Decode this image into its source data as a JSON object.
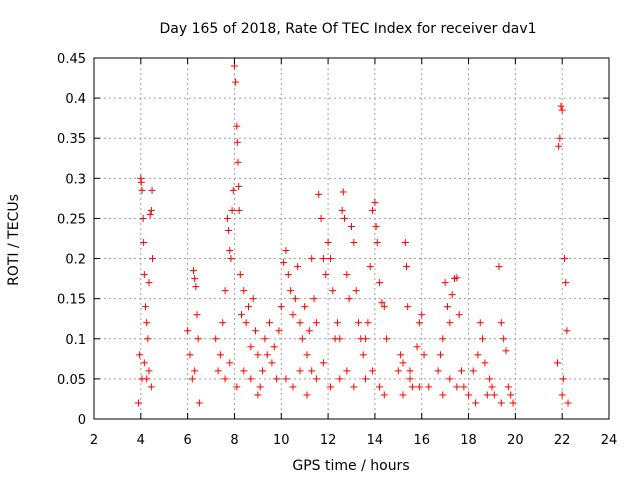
{
  "chart_data": {
    "type": "scatter",
    "title": "Day 165 of 2018, Rate Of TEC Index for receiver dav1",
    "xlabel": "GPS time / hours",
    "ylabel": "ROTI / TECUs",
    "xlim": [
      2,
      24
    ],
    "ylim": [
      0,
      0.45
    ],
    "xticks": [
      2,
      4,
      6,
      8,
      10,
      12,
      14,
      16,
      18,
      20,
      22,
      24
    ],
    "xtick_labels": [
      "2",
      "4",
      "6",
      "8",
      "10",
      "12",
      "14",
      "16",
      "18",
      "20",
      "22",
      "24"
    ],
    "yticks": [
      0,
      0.05,
      0.1,
      0.15,
      0.2,
      0.25,
      0.3,
      0.35,
      0.4,
      0.45
    ],
    "ytick_labels": [
      "0",
      "0.05",
      "0.1",
      "0.15",
      "0.2",
      "0.25",
      "0.3",
      "0.35",
      "0.4",
      "0.45"
    ],
    "grid": true,
    "marker": "+",
    "color": "#ff0000",
    "series": [
      {
        "name": "ROTI",
        "points": [
          [
            3.9,
            0.02
          ],
          [
            3.95,
            0.08
          ],
          [
            4.0,
            0.3
          ],
          [
            4.02,
            0.295
          ],
          [
            4.05,
            0.285
          ],
          [
            4.1,
            0.25
          ],
          [
            4.12,
            0.22
          ],
          [
            4.15,
            0.18
          ],
          [
            4.2,
            0.14
          ],
          [
            4.25,
            0.12
          ],
          [
            4.3,
            0.1
          ],
          [
            4.35,
            0.17
          ],
          [
            4.4,
            0.255
          ],
          [
            4.45,
            0.26
          ],
          [
            4.48,
            0.285
          ],
          [
            4.5,
            0.2
          ],
          [
            4.05,
            0.05
          ],
          [
            4.15,
            0.07
          ],
          [
            4.25,
            0.05
          ],
          [
            4.35,
            0.06
          ],
          [
            4.45,
            0.04
          ],
          [
            6.0,
            0.11
          ],
          [
            6.1,
            0.08
          ],
          [
            6.2,
            0.05
          ],
          [
            6.25,
            0.185
          ],
          [
            6.3,
            0.175
          ],
          [
            6.35,
            0.165
          ],
          [
            6.4,
            0.13
          ],
          [
            6.45,
            0.1
          ],
          [
            6.5,
            0.02
          ],
          [
            6.3,
            0.06
          ],
          [
            7.2,
            0.1
          ],
          [
            7.3,
            0.06
          ],
          [
            7.4,
            0.08
          ],
          [
            7.5,
            0.12
          ],
          [
            7.6,
            0.16
          ],
          [
            7.7,
            0.25
          ],
          [
            7.75,
            0.235
          ],
          [
            7.8,
            0.21
          ],
          [
            7.85,
            0.2
          ],
          [
            7.9,
            0.26
          ],
          [
            7.95,
            0.285
          ],
          [
            8.0,
            0.44
          ],
          [
            8.05,
            0.42
          ],
          [
            8.1,
            0.365
          ],
          [
            8.12,
            0.345
          ],
          [
            8.15,
            0.32
          ],
          [
            8.18,
            0.29
          ],
          [
            8.2,
            0.26
          ],
          [
            8.25,
            0.18
          ],
          [
            8.3,
            0.13
          ],
          [
            8.4,
            0.16
          ],
          [
            8.5,
            0.12
          ],
          [
            8.6,
            0.14
          ],
          [
            8.7,
            0.09
          ],
          [
            8.8,
            0.15
          ],
          [
            8.9,
            0.11
          ],
          [
            9.0,
            0.08
          ],
          [
            7.6,
            0.05
          ],
          [
            7.8,
            0.07
          ],
          [
            8.1,
            0.04
          ],
          [
            8.4,
            0.06
          ],
          [
            8.7,
            0.05
          ],
          [
            9.0,
            0.03
          ],
          [
            9.1,
            0.04
          ],
          [
            9.2,
            0.06
          ],
          [
            9.3,
            0.1
          ],
          [
            9.4,
            0.08
          ],
          [
            9.5,
            0.12
          ],
          [
            9.6,
            0.07
          ],
          [
            9.7,
            0.09
          ],
          [
            9.8,
            0.05
          ],
          [
            9.9,
            0.11
          ],
          [
            10.0,
            0.14
          ],
          [
            10.1,
            0.195
          ],
          [
            10.2,
            0.21
          ],
          [
            10.3,
            0.18
          ],
          [
            10.4,
            0.16
          ],
          [
            10.5,
            0.13
          ],
          [
            10.6,
            0.15
          ],
          [
            10.7,
            0.19
          ],
          [
            10.8,
            0.12
          ],
          [
            10.9,
            0.1
          ],
          [
            11.0,
            0.14
          ],
          [
            11.1,
            0.08
          ],
          [
            11.2,
            0.11
          ],
          [
            11.3,
            0.06
          ],
          [
            10.2,
            0.05
          ],
          [
            10.5,
            0.04
          ],
          [
            10.8,
            0.06
          ],
          [
            11.1,
            0.03
          ],
          [
            11.3,
            0.2
          ],
          [
            11.4,
            0.15
          ],
          [
            11.5,
            0.12
          ],
          [
            11.6,
            0.28
          ],
          [
            11.7,
            0.25
          ],
          [
            11.8,
            0.2
          ],
          [
            11.9,
            0.18
          ],
          [
            12.0,
            0.22
          ],
          [
            12.1,
            0.2
          ],
          [
            12.2,
            0.16
          ],
          [
            12.3,
            0.1
          ],
          [
            11.5,
            0.05
          ],
          [
            11.8,
            0.07
          ],
          [
            12.1,
            0.04
          ],
          [
            12.4,
            0.12
          ],
          [
            12.5,
            0.1
          ],
          [
            12.6,
            0.26
          ],
          [
            12.65,
            0.283
          ],
          [
            12.7,
            0.25
          ],
          [
            12.8,
            0.18
          ],
          [
            12.9,
            0.15
          ],
          [
            13.0,
            0.24
          ],
          [
            13.1,
            0.22
          ],
          [
            13.2,
            0.16
          ],
          [
            13.3,
            0.12
          ],
          [
            13.4,
            0.1
          ],
          [
            12.5,
            0.05
          ],
          [
            12.8,
            0.06
          ],
          [
            13.1,
            0.04
          ],
          [
            13.5,
            0.08
          ],
          [
            13.6,
            0.1
          ],
          [
            13.7,
            0.12
          ],
          [
            13.8,
            0.19
          ],
          [
            13.9,
            0.26
          ],
          [
            14.0,
            0.27
          ],
          [
            14.05,
            0.24
          ],
          [
            14.1,
            0.22
          ],
          [
            14.2,
            0.17
          ],
          [
            14.3,
            0.145
          ],
          [
            14.4,
            0.14
          ],
          [
            14.5,
            0.1
          ],
          [
            13.6,
            0.05
          ],
          [
            13.9,
            0.06
          ],
          [
            14.2,
            0.04
          ],
          [
            14.4,
            0.03
          ],
          [
            15.0,
            0.06
          ],
          [
            15.1,
            0.08
          ],
          [
            15.2,
            0.07
          ],
          [
            15.3,
            0.22
          ],
          [
            15.35,
            0.19
          ],
          [
            15.4,
            0.14
          ],
          [
            15.5,
            0.06
          ],
          [
            15.6,
            0.04
          ],
          [
            15.8,
            0.09
          ],
          [
            15.9,
            0.12
          ],
          [
            16.0,
            0.13
          ],
          [
            16.1,
            0.08
          ],
          [
            16.3,
            0.04
          ],
          [
            15.2,
            0.03
          ],
          [
            15.5,
            0.05
          ],
          [
            15.9,
            0.04
          ],
          [
            16.7,
            0.06
          ],
          [
            16.8,
            0.08
          ],
          [
            16.9,
            0.1
          ],
          [
            17.0,
            0.17
          ],
          [
            17.1,
            0.14
          ],
          [
            17.2,
            0.12
          ],
          [
            17.3,
            0.155
          ],
          [
            17.4,
            0.175
          ],
          [
            17.5,
            0.176
          ],
          [
            17.6,
            0.13
          ],
          [
            17.7,
            0.06
          ],
          [
            17.8,
            0.04
          ],
          [
            16.9,
            0.03
          ],
          [
            17.2,
            0.05
          ],
          [
            17.5,
            0.04
          ],
          [
            18.0,
            0.03
          ],
          [
            18.2,
            0.06
          ],
          [
            18.4,
            0.08
          ],
          [
            18.5,
            0.12
          ],
          [
            18.6,
            0.1
          ],
          [
            18.7,
            0.07
          ],
          [
            18.9,
            0.05
          ],
          [
            19.0,
            0.04
          ],
          [
            19.1,
            0.03
          ],
          [
            19.3,
            0.19
          ],
          [
            19.4,
            0.12
          ],
          [
            19.5,
            0.1
          ],
          [
            19.6,
            0.085
          ],
          [
            19.7,
            0.04
          ],
          [
            19.8,
            0.03
          ],
          [
            19.9,
            0.02
          ],
          [
            18.3,
            0.02
          ],
          [
            18.8,
            0.03
          ],
          [
            19.4,
            0.02
          ],
          [
            21.8,
            0.07
          ],
          [
            21.85,
            0.34
          ],
          [
            21.9,
            0.35
          ],
          [
            21.95,
            0.39
          ],
          [
            22.0,
            0.385
          ],
          [
            22.05,
            0.05
          ],
          [
            22.1,
            0.2
          ],
          [
            22.15,
            0.17
          ],
          [
            22.2,
            0.11
          ],
          [
            22.25,
            0.02
          ],
          [
            22.0,
            0.03
          ]
        ]
      }
    ]
  }
}
